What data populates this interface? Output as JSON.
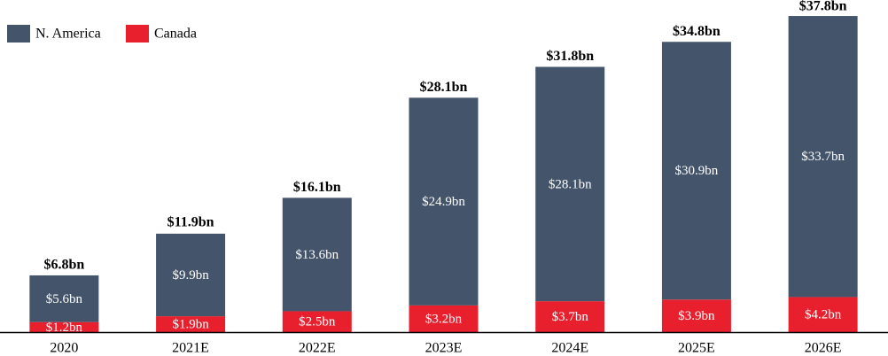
{
  "chart_data": {
    "type": "stacked-bar",
    "categories": [
      "2020",
      "2021E",
      "2022E",
      "2023E",
      "2024E",
      "2025E",
      "2026E"
    ],
    "series": [
      {
        "name": "N. America",
        "color": "#44546a",
        "values": [
          5.6,
          9.9,
          13.6,
          24.9,
          28.1,
          30.9,
          33.7
        ],
        "value_labels": [
          "$5.6bn",
          "$9.9bn",
          "$13.6bn",
          "$24.9bn",
          "$28.1bn",
          "$30.9bn",
          "$33.7bn"
        ]
      },
      {
        "name": "Canada",
        "color": "#e8202e",
        "values": [
          1.2,
          1.9,
          2.5,
          3.2,
          3.7,
          3.9,
          4.2
        ],
        "value_labels": [
          "$1.2bn",
          "$1.9bn",
          "$2.5bn",
          "$3.2bn",
          "$3.7bn",
          "$3.9bn",
          "$4.2bn"
        ]
      }
    ],
    "totals": {
      "values": [
        6.8,
        11.9,
        16.1,
        28.1,
        31.8,
        34.8,
        37.8
      ],
      "value_labels": [
        "$6.8bn",
        "$11.9bn",
        "$16.1bn",
        "$28.1bn",
        "$31.8bn",
        "$34.8bn",
        "$37.8bn"
      ]
    },
    "legend": "top-left"
  }
}
